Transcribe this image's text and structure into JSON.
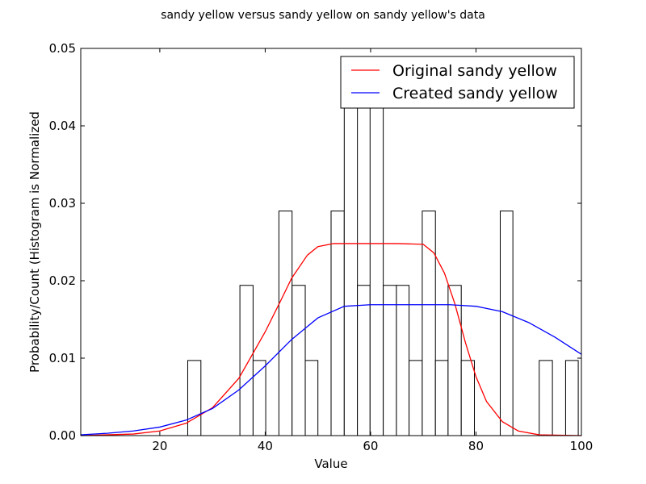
{
  "chart_data": {
    "type": "histogram+line",
    "title": "sandy yellow versus sandy yellow on sandy yellow's data",
    "xlabel": "Value",
    "ylabel": "Probability/Count (Histogram is Normalized",
    "xlim": [
      5,
      100
    ],
    "ylim": [
      0,
      0.05
    ],
    "xticks": [
      20,
      40,
      60,
      80,
      100
    ],
    "xtick_labels": [
      "20",
      "40",
      "60",
      "80",
      "100"
    ],
    "yticks": [
      0,
      0.01,
      0.02,
      0.03,
      0.04,
      0.05
    ],
    "ytick_labels": [
      "0.00",
      "0.01",
      "0.02",
      "0.03",
      "0.04",
      "0.05"
    ],
    "grid": false,
    "legend_position": "top-right",
    "histogram": {
      "edge_color": "#000000",
      "fill_color": "#ffffff",
      "bins": [
        {
          "x0": 25.3,
          "x1": 27.8,
          "value": 0.0097
        },
        {
          "x0": 35.2,
          "x1": 37.7,
          "value": 0.0194
        },
        {
          "x0": 37.7,
          "x1": 40.1,
          "value": 0.0097
        },
        {
          "x0": 42.6,
          "x1": 45.1,
          "value": 0.029
        },
        {
          "x0": 45.1,
          "x1": 47.6,
          "value": 0.0194
        },
        {
          "x0": 47.6,
          "x1": 50.0,
          "value": 0.0097
        },
        {
          "x0": 52.5,
          "x1": 55.0,
          "value": 0.029
        },
        {
          "x0": 55.0,
          "x1": 57.5,
          "value": 0.0435
        },
        {
          "x0": 57.5,
          "x1": 59.9,
          "value": 0.0194
        },
        {
          "x0": 59.9,
          "x1": 62.4,
          "value": 0.0435
        },
        {
          "x0": 62.4,
          "x1": 64.9,
          "value": 0.0194
        },
        {
          "x0": 64.9,
          "x1": 67.3,
          "value": 0.0194
        },
        {
          "x0": 67.3,
          "x1": 69.8,
          "value": 0.0097
        },
        {
          "x0": 69.8,
          "x1": 72.3,
          "value": 0.029
        },
        {
          "x0": 72.3,
          "x1": 74.7,
          "value": 0.0097
        },
        {
          "x0": 74.7,
          "x1": 77.2,
          "value": 0.0194
        },
        {
          "x0": 77.2,
          "x1": 79.7,
          "value": 0.0097
        },
        {
          "x0": 84.6,
          "x1": 87.0,
          "value": 0.029
        },
        {
          "x0": 92.0,
          "x1": 94.5,
          "value": 0.0097
        },
        {
          "x0": 97.0,
          "x1": 99.4,
          "value": 0.0097
        }
      ]
    },
    "series": [
      {
        "name": "Original sandy yellow",
        "color": "#ff0000",
        "points": [
          [
            5,
            0.0
          ],
          [
            15,
            0.0002
          ],
          [
            20,
            0.0006
          ],
          [
            25,
            0.0016
          ],
          [
            30,
            0.0036
          ],
          [
            35,
            0.0074
          ],
          [
            40,
            0.0134
          ],
          [
            43,
            0.0175
          ],
          [
            45,
            0.0203
          ],
          [
            48,
            0.0233
          ],
          [
            50,
            0.0244
          ],
          [
            53,
            0.0248
          ],
          [
            60,
            0.0248
          ],
          [
            65,
            0.0248
          ],
          [
            70,
            0.0247
          ],
          [
            72,
            0.0236
          ],
          [
            74,
            0.021
          ],
          [
            76,
            0.017
          ],
          [
            78,
            0.012
          ],
          [
            80,
            0.0076
          ],
          [
            82,
            0.0044
          ],
          [
            85,
            0.0018
          ],
          [
            88,
            0.0006
          ],
          [
            92,
            0.0001
          ],
          [
            100,
            0.0
          ]
        ]
      },
      {
        "name": "Created sandy yellow",
        "color": "#0000ff",
        "points": [
          [
            5,
            0.0001
          ],
          [
            10,
            0.0003
          ],
          [
            15,
            0.0006
          ],
          [
            20,
            0.0011
          ],
          [
            25,
            0.002
          ],
          [
            30,
            0.0035
          ],
          [
            35,
            0.0059
          ],
          [
            40,
            0.009
          ],
          [
            45,
            0.0124
          ],
          [
            50,
            0.0152
          ],
          [
            55,
            0.0167
          ],
          [
            60,
            0.0169
          ],
          [
            65,
            0.0169
          ],
          [
            70,
            0.0169
          ],
          [
            75,
            0.0169
          ],
          [
            80,
            0.0167
          ],
          [
            85,
            0.016
          ],
          [
            90,
            0.0146
          ],
          [
            95,
            0.0127
          ],
          [
            100,
            0.0105
          ]
        ]
      }
    ]
  }
}
